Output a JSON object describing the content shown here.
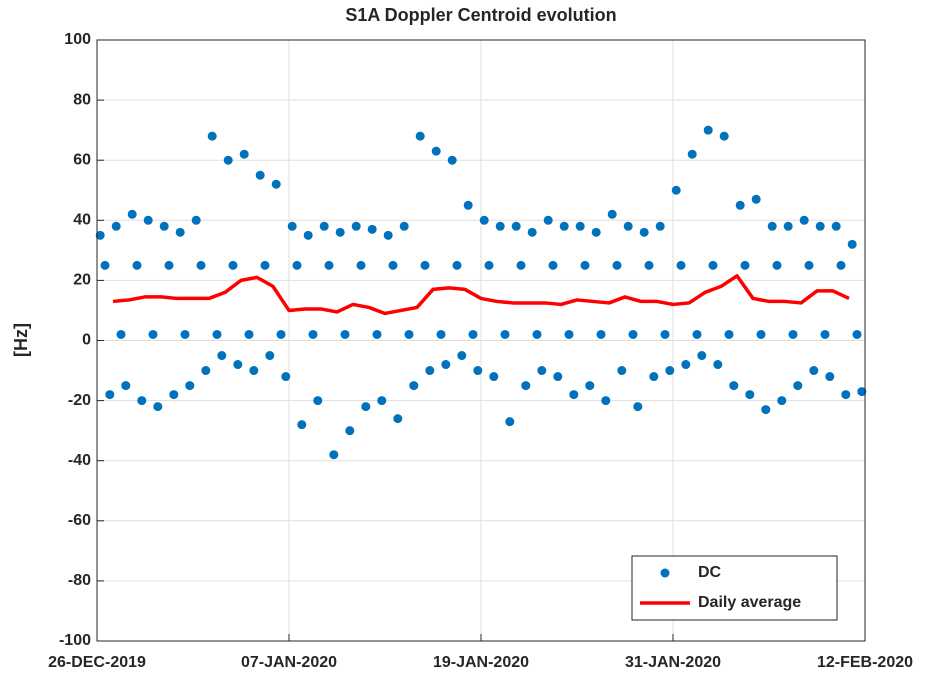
{
  "chart_data": {
    "type": "scatter",
    "title": "S1A Doppler Centroid evolution",
    "y_label": "[Hz]",
    "xlim": [
      0,
      48
    ],
    "xticks": [
      {
        "value": 0,
        "label": "26-DEC-2019"
      },
      {
        "value": 12,
        "label": "07-JAN-2020"
      },
      {
        "value": 24,
        "label": "19-JAN-2020"
      },
      {
        "value": 36,
        "label": "31-JAN-2020"
      },
      {
        "value": 48,
        "label": "12-FEB-2020"
      }
    ],
    "ylim": [
      -100,
      100
    ],
    "yticks": [
      -100,
      -80,
      -60,
      -40,
      -20,
      0,
      20,
      40,
      60,
      80,
      100
    ],
    "grid": true,
    "legend": "southeast",
    "series": [
      {
        "name": "DC",
        "color": "#0072bd",
        "style": "markers",
        "x": [
          0.2,
          0.5,
          0.8,
          1.2,
          1.5,
          1.8,
          2.2,
          2.5,
          2.8,
          3.2,
          3.5,
          3.8,
          4.2,
          4.5,
          4.8,
          5.2,
          5.5,
          5.8,
          6.2,
          6.5,
          6.8,
          7.2,
          7.5,
          7.8,
          8.2,
          8.5,
          8.8,
          9.2,
          9.5,
          9.8,
          10.2,
          10.5,
          10.8,
          11.2,
          11.5,
          11.8,
          12.2,
          12.5,
          12.8,
          13.2,
          13.5,
          13.8,
          14.2,
          14.5,
          14.8,
          15.2,
          15.5,
          15.8,
          16.2,
          16.5,
          16.8,
          17.2,
          17.5,
          17.8,
          18.2,
          18.5,
          18.8,
          19.2,
          19.5,
          19.8,
          20.2,
          20.5,
          20.8,
          21.2,
          21.5,
          21.8,
          22.2,
          22.5,
          22.8,
          23.2,
          23.5,
          23.8,
          24.2,
          24.5,
          24.8,
          25.2,
          25.5,
          25.8,
          26.2,
          26.5,
          26.8,
          27.2,
          27.5,
          27.8,
          28.2,
          28.5,
          28.8,
          29.2,
          29.5,
          29.8,
          30.2,
          30.5,
          30.8,
          31.2,
          31.5,
          31.8,
          32.2,
          32.5,
          32.8,
          33.2,
          33.5,
          33.8,
          34.2,
          34.5,
          34.8,
          35.2,
          35.5,
          35.8,
          36.2,
          36.5,
          36.8,
          37.2,
          37.5,
          37.8,
          38.2,
          38.5,
          38.8,
          39.2,
          39.5,
          39.8,
          40.2,
          40.5,
          40.8,
          41.2,
          41.5,
          41.8,
          42.2,
          42.5,
          42.8,
          43.2,
          43.5,
          43.8,
          44.2,
          44.5,
          44.8,
          45.2,
          45.5,
          45.8,
          46.2,
          46.5,
          46.8,
          47.2,
          47.5,
          47.8
        ],
        "values": [
          35,
          25,
          -18,
          38,
          2,
          -15,
          42,
          25,
          -20,
          40,
          2,
          -22,
          38,
          25,
          -18,
          36,
          2,
          -15,
          40,
          25,
          -10,
          68,
          2,
          -5,
          60,
          25,
          -8,
          62,
          2,
          -10,
          55,
          25,
          -5,
          52,
          2,
          -12,
          38,
          25,
          -28,
          35,
          2,
          -20,
          38,
          25,
          -38,
          36,
          2,
          -30,
          38,
          25,
          -22,
          37,
          2,
          -20,
          35,
          25,
          -26,
          38,
          2,
          -15,
          68,
          25,
          -10,
          63,
          2,
          -8,
          60,
          25,
          -5,
          45,
          2,
          -10,
          40,
          25,
          -12,
          38,
          2,
          -27,
          38,
          25,
          -15,
          36,
          2,
          -10,
          40,
          25,
          -12,
          38,
          2,
          -18,
          38,
          25,
          -15,
          36,
          2,
          -20,
          42,
          25,
          -10,
          38,
          2,
          -22,
          36,
          25,
          -12,
          38,
          2,
          -10,
          50,
          25,
          -8,
          62,
          2,
          -5,
          70,
          25,
          -8,
          68,
          2,
          -15,
          45,
          25,
          -18,
          47,
          2,
          -23,
          38,
          25,
          -20,
          38,
          2,
          -15,
          40,
          25,
          -10,
          38,
          2,
          -12,
          38,
          25,
          -18,
          32,
          2,
          -17
        ]
      },
      {
        "name": "Daily average",
        "color": "#ff0000",
        "style": "line",
        "x": [
          1,
          2,
          3,
          4,
          5,
          6,
          7,
          8,
          9,
          10,
          11,
          12,
          13,
          14,
          15,
          16,
          17,
          18,
          19,
          20,
          21,
          22,
          23,
          24,
          25,
          26,
          27,
          28,
          29,
          30,
          31,
          32,
          33,
          34,
          35,
          36,
          37,
          38,
          39,
          40,
          41,
          42,
          43,
          44,
          45,
          46,
          47
        ],
        "values": [
          13,
          13.5,
          14.5,
          14.5,
          14,
          14,
          14,
          16,
          20,
          21,
          18,
          10,
          10.5,
          10.5,
          9.5,
          12,
          11,
          9,
          10,
          11,
          17,
          17.5,
          17,
          14,
          13,
          12.5,
          12.5,
          12.5,
          12,
          13.5,
          13,
          12.5,
          14.5,
          13,
          13,
          12,
          12.5,
          16,
          18,
          21.5,
          14,
          13,
          13,
          12.5,
          16.5,
          16.5,
          14
        ]
      }
    ]
  }
}
